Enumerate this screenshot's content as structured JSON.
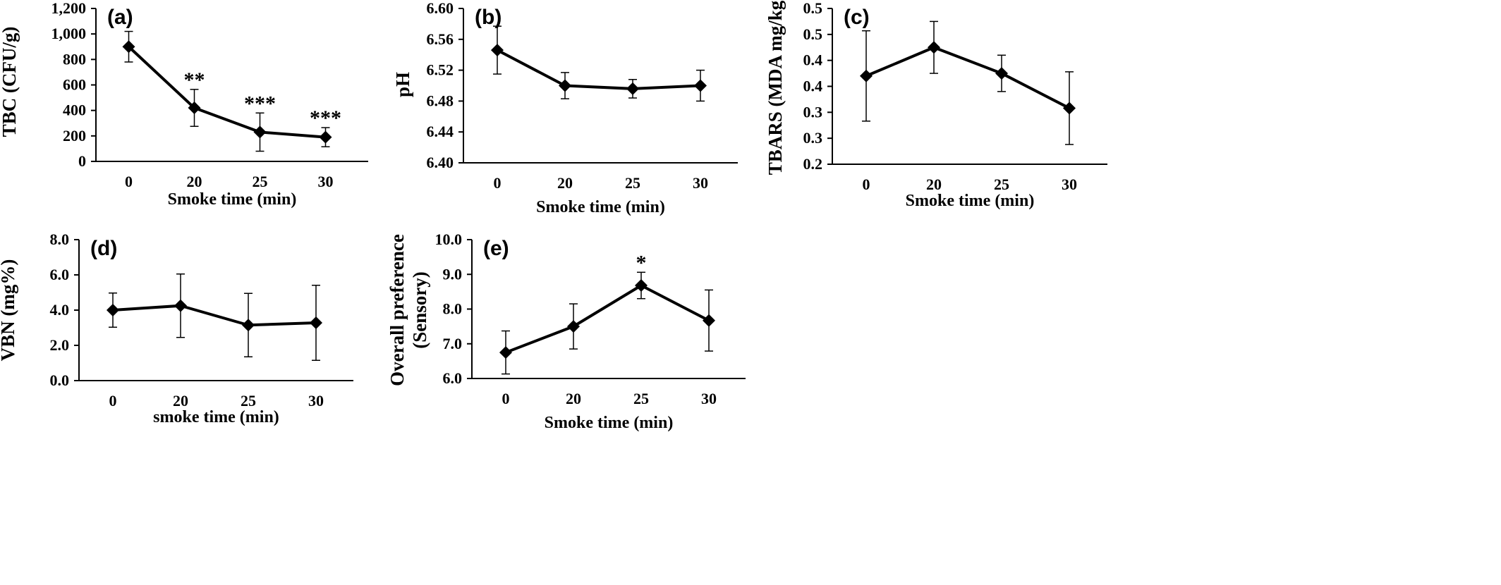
{
  "chart_data": [
    {
      "type": "line",
      "panel_label": "(a)",
      "categories": [
        "0",
        "20",
        "25",
        "30"
      ],
      "values": [
        900,
        420,
        230,
        190
      ],
      "error": [
        120,
        145,
        150,
        75
      ],
      "annotations": [
        "",
        "**",
        "***",
        "***"
      ],
      "xlabel": "Smoke time (min)",
      "ylabel": "TBC (CFU/g)",
      "ylim": [
        0,
        1200
      ],
      "yticks": [
        "0",
        "200",
        "400",
        "600",
        "800",
        "1,000",
        "1,200"
      ]
    },
    {
      "type": "line",
      "panel_label": "(b)",
      "categories": [
        "0",
        "20",
        "25",
        "30"
      ],
      "values": [
        6.546,
        6.5,
        6.496,
        6.5
      ],
      "error": [
        0.031,
        0.017,
        0.012,
        0.02
      ],
      "annotations": [
        "",
        "",
        "",
        ""
      ],
      "xlabel": "Smoke time (min)",
      "ylabel": "pH",
      "ylim": [
        6.4,
        6.6
      ],
      "yticks": [
        "6.40",
        "6.44",
        "6.48",
        "6.52",
        "6.56",
        "6.60"
      ]
    },
    {
      "type": "line",
      "panel_label": "(c)",
      "categories": [
        "0",
        "20",
        "25",
        "30"
      ],
      "values": [
        0.37,
        0.425,
        0.375,
        0.308
      ],
      "error": [
        0.087,
        0.05,
        0.035,
        0.07
      ],
      "annotations": [
        "",
        "",
        "",
        ""
      ],
      "xlabel": "Smoke time (min)",
      "ylabel": "TBARS (MDA mg/kg)",
      "ylim": [
        0.2,
        0.5
      ],
      "yticks": [
        "0.2",
        "0.3",
        "0.3",
        "0.4",
        "0.4",
        "0.5",
        "0.5"
      ]
    },
    {
      "type": "line",
      "panel_label": "(d)",
      "categories": [
        "0",
        "20",
        "25",
        "30"
      ],
      "values": [
        4.0,
        4.25,
        3.15,
        3.28
      ],
      "error": [
        0.97,
        1.8,
        1.8,
        2.13
      ],
      "annotations": [
        "",
        "",
        "",
        ""
      ],
      "xlabel": "smoke time (min)",
      "ylabel": "VBN (mg%)",
      "ylim": [
        0,
        8
      ],
      "yticks": [
        "0.0",
        "2.0",
        "4.0",
        "6.0",
        "8.0"
      ]
    },
    {
      "type": "line",
      "panel_label": "(e)",
      "categories": [
        "0",
        "20",
        "25",
        "30"
      ],
      "values": [
        6.75,
        7.5,
        8.68,
        7.67
      ],
      "error": [
        0.62,
        0.65,
        0.38,
        0.88
      ],
      "annotations": [
        "",
        "",
        "*",
        ""
      ],
      "xlabel": "Smoke time (min)",
      "ylabel": "Overall preference (Sensory)",
      "ylabel_lines": [
        "Overall preference",
        "(Sensory)"
      ],
      "ylim": [
        6,
        10
      ],
      "yticks": [
        "6.0",
        "7.0",
        "8.0",
        "9.0",
        "10.0"
      ]
    }
  ],
  "style": {
    "line_color": "#000000",
    "background": "#ffffff"
  }
}
